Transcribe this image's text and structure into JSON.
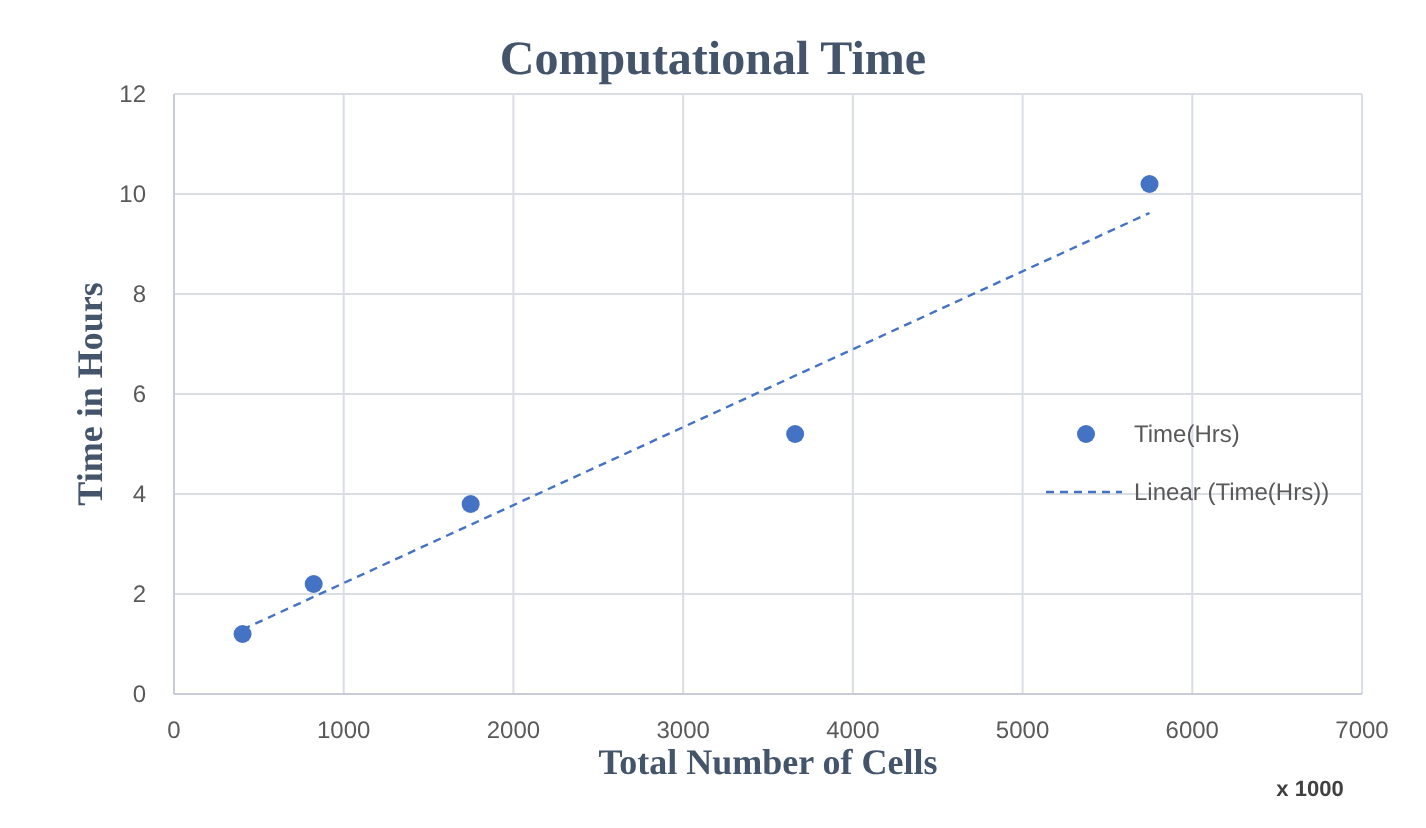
{
  "chart_data": {
    "type": "scatter",
    "title": "Computational Time",
    "xlabel": "Total Number of Cells",
    "ylabel": "Time in Hours",
    "annotations": [
      "x 1000"
    ],
    "xlim": [
      0,
      7000
    ],
    "xticks": [
      0,
      1000,
      2000,
      3000,
      4000,
      5000,
      6000,
      7000
    ],
    "ylim": [
      0,
      12
    ],
    "yticks": [
      0,
      2,
      4,
      6,
      8,
      10,
      12
    ],
    "grid": true,
    "legend": "right",
    "series": [
      {
        "name": "Time(Hrs)",
        "color": "#4472c4",
        "marker": "circle",
        "x": [
          404,
          823,
          1748,
          3660,
          5748
        ],
        "values": [
          1.2,
          2.2,
          3.8,
          5.2,
          10.2
        ]
      },
      {
        "name": "Linear (Time(Hrs))",
        "type": "line",
        "color": "#4472c4",
        "line_style": "dashed",
        "x": [
          404,
          5748
        ],
        "values": [
          1.29,
          9.62
        ]
      }
    ]
  }
}
